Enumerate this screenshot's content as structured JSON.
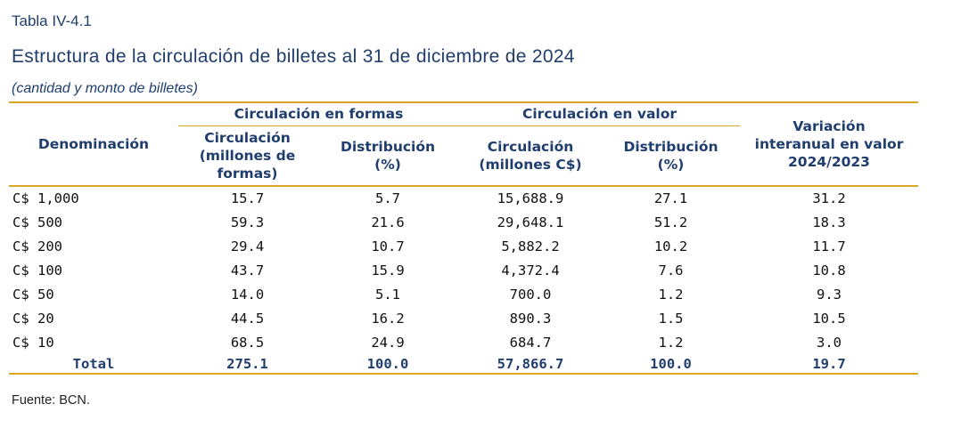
{
  "header": {
    "label": "Tabla IV-4.1",
    "title": "Estructura de la circulación de billetes al 31 de diciembre de 2024",
    "subtitle": "(cantidad y monto de billetes)"
  },
  "table": {
    "group_headers": {
      "formas": "Circulación en formas",
      "valor": "Circulación en valor"
    },
    "col_denominacion": "Denominación",
    "col_circ_formas": [
      "Circulación",
      "(millones de",
      "formas)"
    ],
    "col_dist_formas": [
      "Distribución",
      "(%)"
    ],
    "col_circ_valor": [
      "Circulación",
      "(millones C$)"
    ],
    "col_dist_valor": [
      "Distribución",
      "(%)"
    ],
    "col_variacion": [
      "Variación",
      "interanual en valor",
      "2024/2023"
    ],
    "rows": [
      {
        "den": "C$ 1,000",
        "circ_formas": "15.7",
        "dist_formas": "5.7",
        "circ_valor": "15,688.9",
        "dist_valor": "27.1",
        "variacion": "31.2"
      },
      {
        "den": "C$ 500",
        "circ_formas": "59.3",
        "dist_formas": "21.6",
        "circ_valor": "29,648.1",
        "dist_valor": "51.2",
        "variacion": "18.3"
      },
      {
        "den": "C$ 200",
        "circ_formas": "29.4",
        "dist_formas": "10.7",
        "circ_valor": "5,882.2",
        "dist_valor": "10.2",
        "variacion": "11.7"
      },
      {
        "den": "C$ 100",
        "circ_formas": "43.7",
        "dist_formas": "15.9",
        "circ_valor": "4,372.4",
        "dist_valor": "7.6",
        "variacion": "10.8"
      },
      {
        "den": "C$ 50",
        "circ_formas": "14.0",
        "dist_formas": "5.1",
        "circ_valor": "700.0",
        "dist_valor": "1.2",
        "variacion": "9.3"
      },
      {
        "den": "C$ 20",
        "circ_formas": "44.5",
        "dist_formas": "16.2",
        "circ_valor": "890.3",
        "dist_valor": "1.5",
        "variacion": "10.5"
      },
      {
        "den": "C$ 10",
        "circ_formas": "68.5",
        "dist_formas": "24.9",
        "circ_valor": "684.7",
        "dist_valor": "1.2",
        "variacion": "3.0"
      }
    ],
    "total": {
      "den": "Total",
      "circ_formas": "275.1",
      "dist_formas": "100.0",
      "circ_valor": "57,866.7",
      "dist_valor": "100.0",
      "variacion": "19.7"
    }
  },
  "footer": {
    "source": "Fuente: BCN."
  },
  "colors": {
    "title_blue": "#1f3e6e",
    "rule_gold": "#d9a625"
  }
}
